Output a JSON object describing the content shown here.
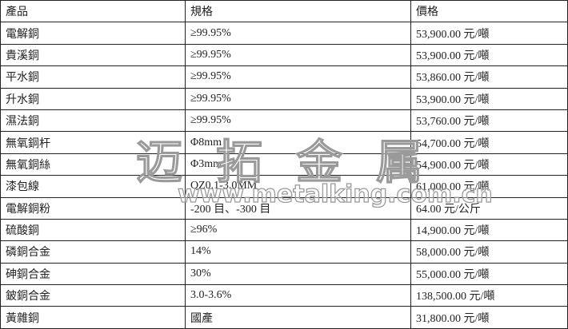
{
  "headers": [
    "產品",
    "規格",
    "價格"
  ],
  "rows": [
    [
      "電解銅",
      "≥99.95%",
      "53,900.00 元/噸"
    ],
    [
      "貴溪銅",
      "≥99.95%",
      "53,900.00 元/噸"
    ],
    [
      "平水銅",
      "≥99.95%",
      "53,860.00 元/噸"
    ],
    [
      "升水銅",
      "≥99.95%",
      "53,900.00 元/噸"
    ],
    [
      "濕法銅",
      "≥99.95%",
      "53,760.00 元/噸"
    ],
    [
      "無氧銅杆",
      "Φ8mm",
      "54,700.00 元/噸"
    ],
    [
      "無氧銅絲",
      "Φ3mm",
      "54,900.00 元/噸"
    ],
    [
      "漆包線",
      "QZ0.1-3.0MM",
      "61,000.00 元/噸"
    ],
    [
      "電解銅粉",
      "-200 目、-300 目",
      "64.00 元/公斤"
    ],
    [
      "硫酸銅",
      "≥96%",
      "14,900.00 元/噸"
    ],
    [
      "磷銅合金",
      "14%",
      "58,000.00 元/噸"
    ],
    [
      "砷銅合金",
      "30%",
      "55,000.00 元/噸"
    ],
    [
      "鈹銅合金",
      "3.0-3.6%",
      "138,500.00 元/噸"
    ],
    [
      "黃雜銅",
      "國產",
      "31,800.00 元/噸"
    ]
  ],
  "watermark": {
    "text": "迈拓金属",
    "url": "www.metalking.com.cn"
  }
}
